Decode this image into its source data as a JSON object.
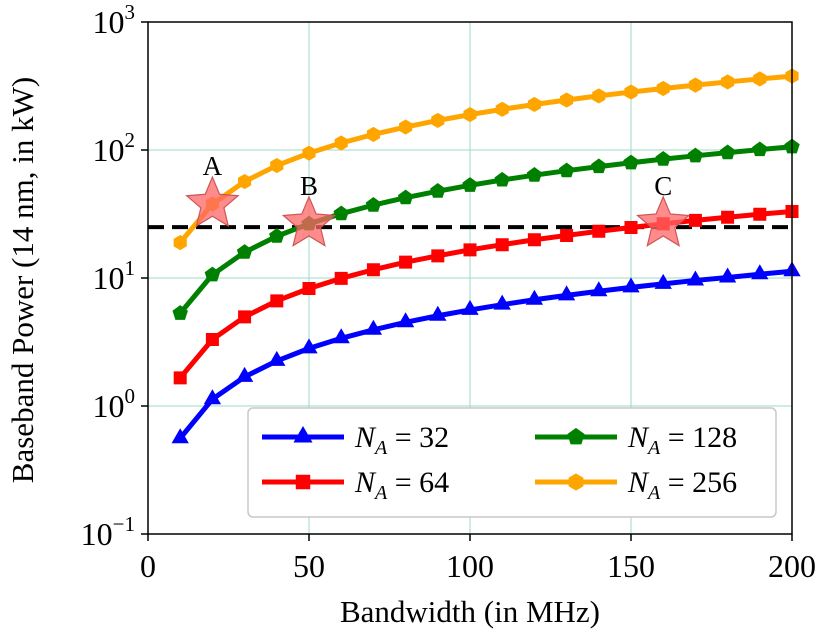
{
  "chart_data": {
    "type": "line",
    "title": "",
    "xlabel": "Bandwidth (in MHz)",
    "ylabel": "Baseband Power (14 nm, in kW)",
    "yscale": "log",
    "xlim": [
      0,
      200
    ],
    "ylim": [
      0.1,
      1000
    ],
    "grid": true,
    "x_ticks": [
      {
        "value": 0,
        "label": "0"
      },
      {
        "value": 50,
        "label": "50"
      },
      {
        "value": 100,
        "label": "100"
      },
      {
        "value": 150,
        "label": "150"
      },
      {
        "value": 200,
        "label": "200"
      }
    ],
    "y_ticks": [
      {
        "value": 0.1,
        "base": "10",
        "exp": "−1"
      },
      {
        "value": 1,
        "base": "10",
        "exp": "0"
      },
      {
        "value": 10,
        "base": "10",
        "exp": "1"
      },
      {
        "value": 100,
        "base": "10",
        "exp": "2"
      },
      {
        "value": 1000,
        "base": "10",
        "exp": "3"
      }
    ],
    "x": [
      10,
      20,
      30,
      40,
      50,
      60,
      70,
      80,
      90,
      100,
      110,
      120,
      130,
      140,
      150,
      160,
      170,
      180,
      190,
      200
    ],
    "series": [
      {
        "name": "N_A = 32",
        "label_var": "N",
        "label_sub": "A",
        "label_value": "= 32",
        "color": "#0000ff",
        "marker": "triangle",
        "values": [
          0.56,
          1.13,
          1.69,
          2.25,
          2.82,
          3.38,
          3.94,
          4.51,
          5.07,
          5.63,
          6.19,
          6.76,
          7.32,
          7.88,
          8.45,
          9.0,
          9.57,
          10.1,
          10.7,
          11.3
        ]
      },
      {
        "name": "N_A = 64",
        "label_var": "N",
        "label_sub": "A",
        "label_value": "= 64",
        "color": "#ff0000",
        "marker": "square",
        "values": [
          1.66,
          3.31,
          4.97,
          6.63,
          8.28,
          9.94,
          11.6,
          13.3,
          14.9,
          16.6,
          18.2,
          19.9,
          21.5,
          23.2,
          24.8,
          26.5,
          28.2,
          29.8,
          31.5,
          33.1
        ]
      },
      {
        "name": "N_A = 128",
        "label_var": "N",
        "label_sub": "A",
        "label_value": "= 128",
        "color": "#008000",
        "marker": "pentagon",
        "values": [
          5.3,
          10.6,
          15.9,
          21.2,
          26.5,
          31.8,
          37.1,
          42.4,
          47.7,
          53.0,
          58.3,
          63.6,
          68.9,
          74.2,
          79.5,
          84.8,
          90.1,
          95.4,
          100.7,
          106.0
        ]
      },
      {
        "name": "N_A = 256",
        "label_var": "N",
        "label_sub": "A",
        "label_value": "= 256",
        "color": "#ffa500",
        "marker": "hexagon",
        "values": [
          18.9,
          37.8,
          56.7,
          75.6,
          94.5,
          113.4,
          132.3,
          151.2,
          170.1,
          189.0,
          207.9,
          226.8,
          245.7,
          264.6,
          283.5,
          302.4,
          321.3,
          340.2,
          359.1,
          378.0
        ]
      }
    ],
    "reference_line": {
      "y": 25,
      "style": "dashed",
      "color": "#000000"
    },
    "annotations": [
      {
        "label": "A",
        "x": 20,
        "y": 37.8,
        "marker": "star",
        "color": "#ff6666"
      },
      {
        "label": "B",
        "x": 50,
        "y": 26.5,
        "marker": "star",
        "color": "#ff6666"
      },
      {
        "label": "C",
        "x": 160,
        "y": 26.5,
        "marker": "star",
        "color": "#ff6666"
      }
    ],
    "legend": {
      "placement": "lower-right",
      "columns": 2
    },
    "colors": {
      "grid": "#9fd9c4",
      "axis": "#000000",
      "background": "#ffffff"
    }
  }
}
